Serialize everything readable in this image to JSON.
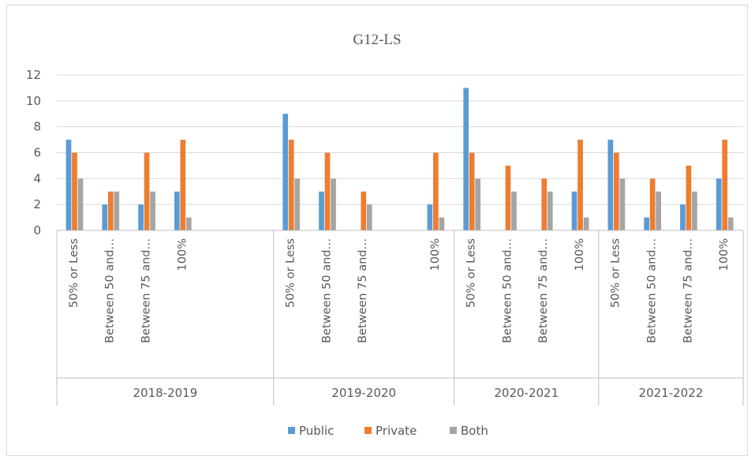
{
  "chart_data": {
    "type": "bar",
    "title": "G12-LS",
    "ylim": [
      0,
      12
    ],
    "yticks": [
      0,
      2,
      4,
      6,
      8,
      10,
      12
    ],
    "grid": true,
    "legend_position": "bottom",
    "groups": [
      {
        "label": "2018-2019",
        "categories": [
          "50% or Less",
          "Between 50 and…",
          "Between 75 and…",
          "100%",
          "",
          ""
        ],
        "series": {
          "Public": [
            7,
            2,
            2,
            3,
            null,
            null
          ],
          "Private": [
            6,
            3,
            6,
            7,
            null,
            null
          ],
          "Both": [
            4,
            3,
            3,
            1,
            null,
            null
          ]
        }
      },
      {
        "label": "2019-2020",
        "categories": [
          "50% or Less",
          "Between 50 and…",
          "Between 75 and…",
          "",
          "100%"
        ],
        "series": {
          "Public": [
            9,
            3,
            null,
            null,
            2
          ],
          "Private": [
            7,
            6,
            3,
            null,
            6
          ],
          "Both": [
            4,
            4,
            2,
            null,
            1
          ]
        }
      },
      {
        "label": "2020-2021",
        "categories": [
          "50% or Less",
          "Between 50 and…",
          "Between 75 and…",
          "100%"
        ],
        "series": {
          "Public": [
            11,
            null,
            null,
            3
          ],
          "Private": [
            6,
            5,
            4,
            7
          ],
          "Both": [
            4,
            3,
            3,
            1
          ]
        }
      },
      {
        "label": "2021-2022",
        "categories": [
          "50% or Less",
          "Between 50 and…",
          "Between 75 and…",
          "100%"
        ],
        "series": {
          "Public": [
            7,
            1,
            2,
            4
          ],
          "Private": [
            6,
            4,
            5,
            7
          ],
          "Both": [
            4,
            3,
            3,
            1
          ]
        }
      }
    ],
    "legend": [
      {
        "name": "Public",
        "color": "#5b9bd5"
      },
      {
        "name": "Private",
        "color": "#ed7d31"
      },
      {
        "name": "Both",
        "color": "#a5a5a5"
      }
    ]
  }
}
